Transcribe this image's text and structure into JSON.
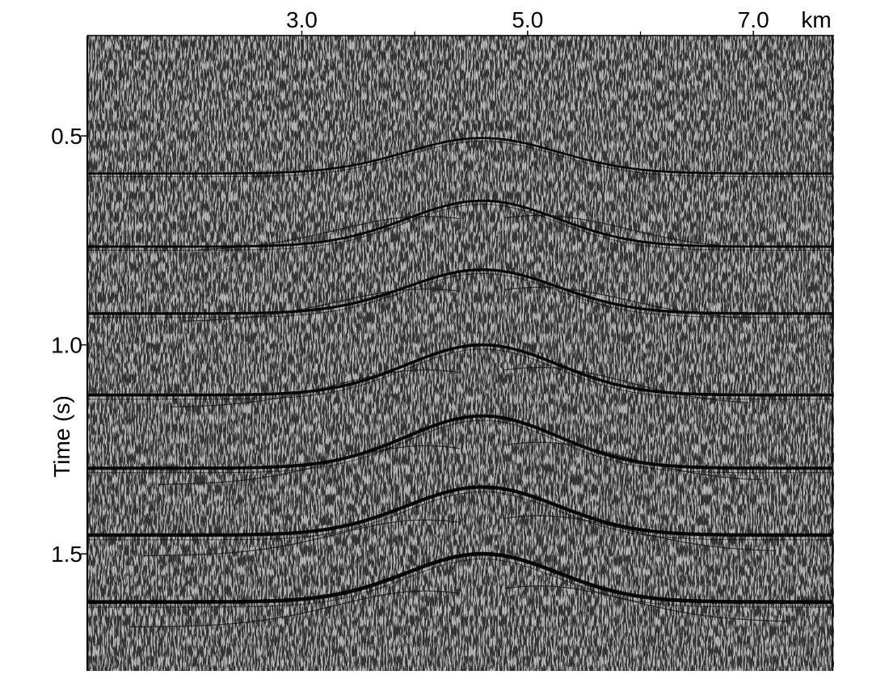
{
  "figure": {
    "x_axis": {
      "ticks": [
        3.0,
        5.0,
        7.0
      ],
      "tick_labels": [
        "3.0",
        "5.0",
        "7.0"
      ],
      "unit": "km",
      "range": [
        1.1,
        7.7
      ],
      "minor_ticks": [
        4.0,
        6.0
      ]
    },
    "y_axis": {
      "label": "Time (s)",
      "ticks": [
        0.5,
        1.0,
        1.5
      ],
      "tick_labels": [
        "0.5",
        "1.0",
        "1.5"
      ],
      "range": [
        0.26,
        1.78
      ]
    },
    "colors": {
      "background": "#ffffff",
      "ink": "#000000",
      "noise_light": "#bdbdbd",
      "noise_dark": "#3a3a3a"
    },
    "reflectors": [
      {
        "flat_time": 0.59,
        "apex_time": 0.505,
        "apex_x": 4.6,
        "width": 1.2
      },
      {
        "flat_time": 0.765,
        "apex_time": 0.655,
        "apex_x": 4.6,
        "width": 1.2
      },
      {
        "flat_time": 0.925,
        "apex_time": 0.82,
        "apex_x": 4.6,
        "width": 1.2
      },
      {
        "flat_time": 1.12,
        "apex_time": 1.0,
        "apex_x": 4.6,
        "width": 1.2
      },
      {
        "flat_time": 1.295,
        "apex_time": 1.17,
        "apex_x": 4.6,
        "width": 1.2
      },
      {
        "flat_time": 1.455,
        "apex_time": 1.34,
        "apex_x": 4.6,
        "width": 1.2
      },
      {
        "flat_time": 1.615,
        "apex_time": 1.5,
        "apex_x": 4.6,
        "width": 1.2
      }
    ]
  }
}
